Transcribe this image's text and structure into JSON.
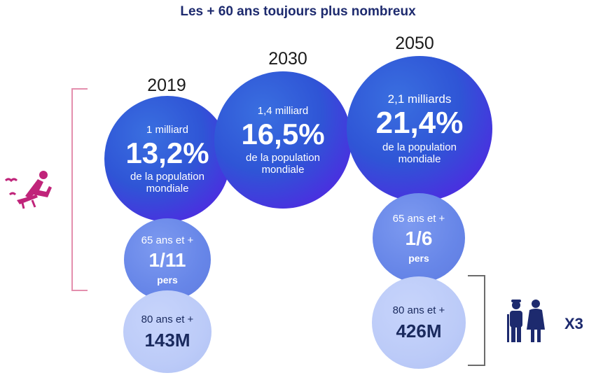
{
  "title": "Les + 60 ans toujours plus nombreux",
  "years": [
    {
      "year": "2019",
      "quantity": "1 milliard",
      "percent": "13,2%",
      "line1": "de la population",
      "line2": "mondiale"
    },
    {
      "year": "2030",
      "quantity": "1,4 milliard",
      "percent": "16,5%",
      "line1": "de la population",
      "line2": "mondiale"
    },
    {
      "year": "2050",
      "quantity": "2,1 milliards",
      "percent": "21,4%",
      "line1": "de la population",
      "line2": "mondiale"
    }
  ],
  "over65": [
    {
      "label": "65 ans et +",
      "fraction": "1/11",
      "unit": "pers"
    },
    {
      "label": "65 ans et +",
      "fraction": "1/6",
      "unit": "pers"
    }
  ],
  "over80": [
    {
      "label": "80 ans et +",
      "value": "143M"
    },
    {
      "label": "80 ans et +",
      "value": "426M"
    }
  ],
  "multiplier": "X3",
  "colors": {
    "title": "#1d2a6e",
    "accent_pink": "#c0247a",
    "circle_dark": "#3452d8",
    "circle_mid": "#6786e8",
    "circle_light": "#bccbf8"
  },
  "icons": [
    "relaxing-person-icon",
    "elderly-couple-icon"
  ]
}
